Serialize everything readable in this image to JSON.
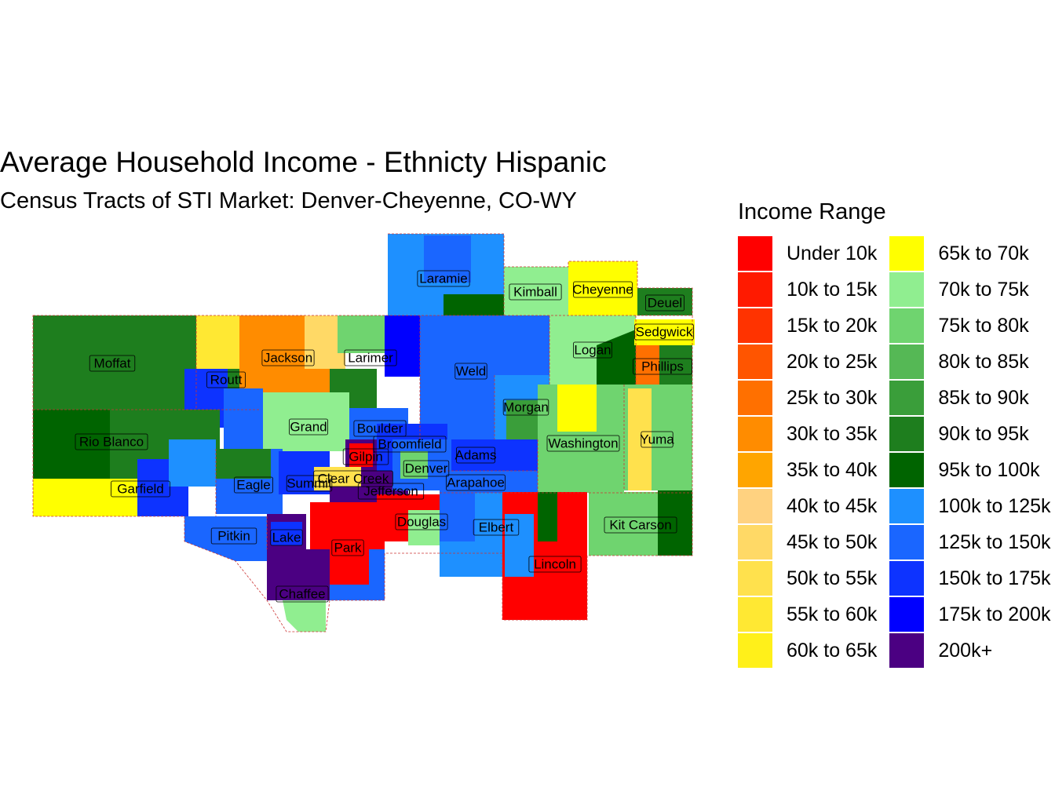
{
  "title": "Average Household Income - Ethnicty Hispanic",
  "subtitle": "Census Tracts of STI Market: Denver-Cheyenne, CO-WY",
  "legend": {
    "title": "Income Range",
    "items": [
      {
        "label": "Under 10k",
        "color": "#FF0000"
      },
      {
        "label": "10k to 15k",
        "color": "#FF1A00"
      },
      {
        "label": "15k to 20k",
        "color": "#FF3300"
      },
      {
        "label": "20k to 25k",
        "color": "#FF5500"
      },
      {
        "label": "25k to 30k",
        "color": "#FF7000"
      },
      {
        "label": "30k to 35k",
        "color": "#FF8C00"
      },
      {
        "label": "35k to 40k",
        "color": "#FFA500"
      },
      {
        "label": "40k to 45k",
        "color": "#FFD280"
      },
      {
        "label": "45k to 50k",
        "color": "#FFD966"
      },
      {
        "label": "50k to 55k",
        "color": "#FFE14D"
      },
      {
        "label": "55k to 60k",
        "color": "#FFE833"
      },
      {
        "label": "60k to 65k",
        "color": "#FFF01A"
      },
      {
        "label": "65k to 70k",
        "color": "#FFFF00"
      },
      {
        "label": "70k to 75k",
        "color": "#90EE90"
      },
      {
        "label": "75k to 80k",
        "color": "#6FD46F"
      },
      {
        "label": "80k to 85k",
        "color": "#55B855"
      },
      {
        "label": "85k to 90k",
        "color": "#3A9E3A"
      },
      {
        "label": "90k to 95k",
        "color": "#1E7E1E"
      },
      {
        "label": "95k to 100k",
        "color": "#006400"
      },
      {
        "label": "100k to 125k",
        "color": "#1E90FF"
      },
      {
        "label": "125k to 150k",
        "color": "#1A66FF"
      },
      {
        "label": "150k to 175k",
        "color": "#0D33FF"
      },
      {
        "label": "175k to 200k",
        "color": "#0000FF"
      },
      {
        "label": "200k+",
        "color": "#4B0082"
      }
    ]
  },
  "counties": [
    {
      "name": "Laramie"
    },
    {
      "name": "Kimball"
    },
    {
      "name": "Cheyenne"
    },
    {
      "name": "Deuel"
    },
    {
      "name": "Sedgwick"
    },
    {
      "name": "Moffat"
    },
    {
      "name": "Jackson"
    },
    {
      "name": "Larimer"
    },
    {
      "name": "Logan"
    },
    {
      "name": "Weld"
    },
    {
      "name": "Phillips"
    },
    {
      "name": "Routt"
    },
    {
      "name": "Morgan"
    },
    {
      "name": "Grand"
    },
    {
      "name": "Boulder"
    },
    {
      "name": "Rio Blanco"
    },
    {
      "name": "Broomfield"
    },
    {
      "name": "Washington"
    },
    {
      "name": "Yuma"
    },
    {
      "name": "Gilpin"
    },
    {
      "name": "Adams"
    },
    {
      "name": "Denver"
    },
    {
      "name": "Clear Creek"
    },
    {
      "name": "Eagle"
    },
    {
      "name": "Summit"
    },
    {
      "name": "Arapahoe"
    },
    {
      "name": "Garfield"
    },
    {
      "name": "Jefferson"
    },
    {
      "name": "Douglas"
    },
    {
      "name": "Elbert"
    },
    {
      "name": "Kit Carson"
    },
    {
      "name": "Pitkin"
    },
    {
      "name": "Lake"
    },
    {
      "name": "Park"
    },
    {
      "name": "Lincoln"
    },
    {
      "name": "Chaffee"
    }
  ]
}
